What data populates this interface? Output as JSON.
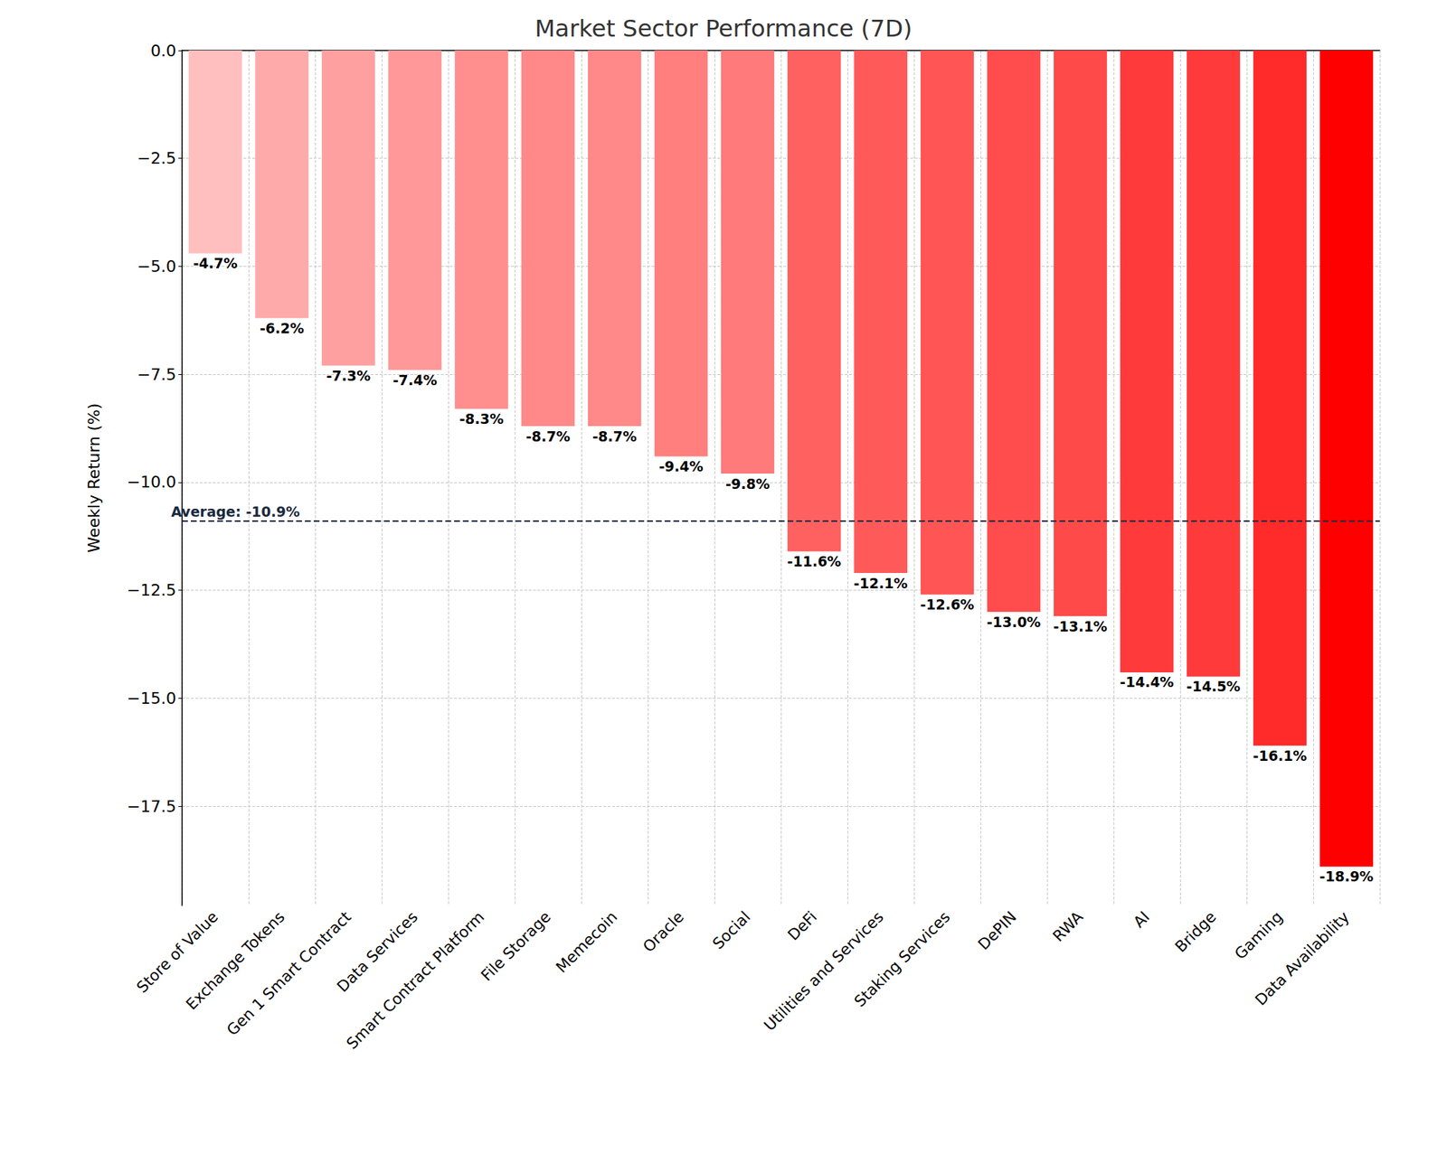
{
  "chart_data": {
    "type": "bar",
    "title": "Market Sector Performance (7D)",
    "y_label": "Weekly Return (%)",
    "categories": [
      "Store of Value",
      "Exchange Tokens",
      "Gen 1 Smart Contract",
      "Data Services",
      "Smart Contract Platform",
      "File Storage",
      "Memecoin",
      "Oracle",
      "Social",
      "DeFi",
      "Utilities and Services",
      "Staking Services",
      "DePIN",
      "RWA",
      "AI",
      "Bridge",
      "Gaming",
      "Data Availability"
    ],
    "values": [
      -4.7,
      -6.2,
      -7.3,
      -7.4,
      -8.3,
      -8.7,
      -8.7,
      -9.4,
      -9.8,
      -11.6,
      -12.1,
      -12.6,
      -13.0,
      -13.1,
      -14.4,
      -14.5,
      -16.1,
      -18.9
    ],
    "value_labels": [
      "-4.7%",
      "-6.2%",
      "-7.3%",
      "-7.4%",
      "-8.3%",
      "-8.7%",
      "-8.7%",
      "-9.4%",
      "-9.8%",
      "-11.6%",
      "-12.1%",
      "-12.6%",
      "-13.0%",
      "-13.1%",
      "-14.4%",
      "-14.5%",
      "-16.1%",
      "-18.9%"
    ],
    "colors": [
      "#ffbfbf",
      "#ffaaaa",
      "#ffa0a0",
      "#ff9999",
      "#ff8f8f",
      "#ff8888",
      "#ff8888",
      "#ff7f7f",
      "#ff7a7a",
      "#ff6060",
      "#ff5a5a",
      "#ff5555",
      "#ff4c4c",
      "#ff4a4a",
      "#ff3a3a",
      "#ff3a3a",
      "#ff2a2a",
      "#ff0000"
    ],
    "data_labels": true,
    "average": {
      "value": -10.9,
      "label": "Average: -10.9%",
      "color": "#1a2a40",
      "line_style": "dashed"
    },
    "ylim": [
      -19.8,
      0
    ],
    "yticks": [
      {
        "value": 0,
        "label": "0.0"
      },
      {
        "value": -2.5,
        "label": "−2.5"
      },
      {
        "value": -5,
        "label": "−5.0"
      },
      {
        "value": -7.5,
        "label": "−7.5"
      },
      {
        "value": -10,
        "label": "−10.0"
      },
      {
        "value": -12.5,
        "label": "−12.5"
      },
      {
        "value": -15,
        "label": "−15.0"
      },
      {
        "value": -17.5,
        "label": "−17.5"
      }
    ],
    "grid": true
  }
}
